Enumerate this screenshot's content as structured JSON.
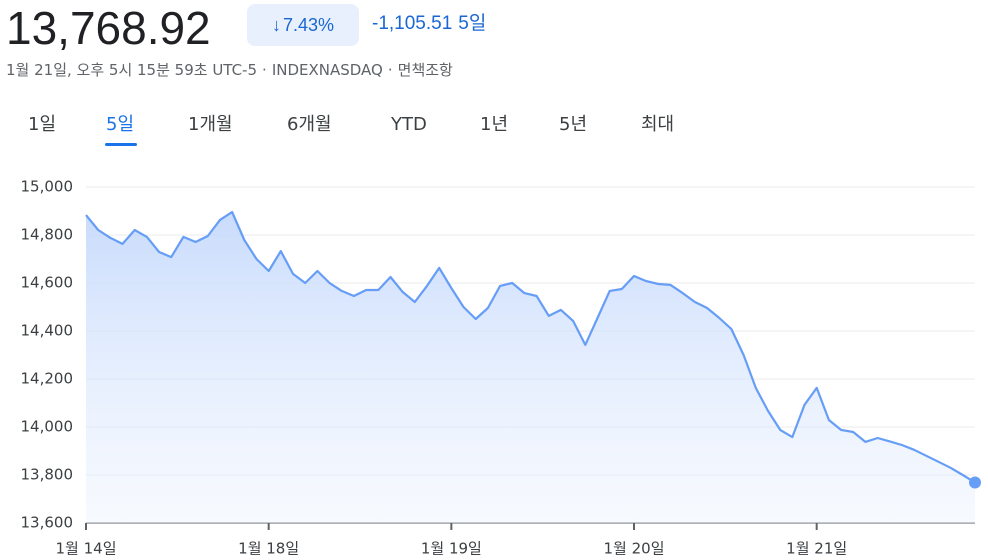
{
  "header": {
    "price": "13,768.92",
    "change_percent": "7.43%",
    "change": "-1,105.51",
    "change_period": "5일",
    "timestamp": "1월 21일, 오후 5시 15분 59초 UTC-5",
    "exchange": "INDEXNASDAQ",
    "disclaimer": "면책조항"
  },
  "tabs": {
    "items": [
      "1일",
      "5일",
      "1개월",
      "6개월",
      "YTD",
      "1년",
      "5년",
      "최대"
    ],
    "selected": 1
  },
  "chart_data": {
    "type": "line",
    "categories": [
      "1월 14일",
      null,
      null,
      null,
      null,
      null,
      null,
      null,
      null,
      null,
      null,
      null,
      null,
      null,
      null,
      "1월 18일",
      null,
      null,
      null,
      null,
      null,
      null,
      null,
      null,
      null,
      null,
      null,
      null,
      null,
      null,
      "1월 19일",
      null,
      null,
      null,
      null,
      null,
      null,
      null,
      null,
      null,
      null,
      null,
      null,
      null,
      null,
      "1월 20일",
      null,
      null,
      null,
      null,
      null,
      null,
      null,
      null,
      null,
      null,
      null,
      null,
      null,
      null,
      "1월 21일",
      null,
      null,
      null,
      null,
      null,
      null,
      null,
      null,
      null,
      null,
      null,
      null,
      null
    ],
    "values": [
      14883,
      14821,
      14788,
      14763,
      14821,
      14792,
      14729,
      14708,
      14792,
      14771,
      14796,
      14863,
      14896,
      14779,
      14700,
      14650,
      14733,
      14638,
      14600,
      14650,
      14600,
      14567,
      14546,
      14571,
      14571,
      14625,
      14563,
      14521,
      14588,
      14663,
      14579,
      14500,
      14450,
      14496,
      14588,
      14600,
      14558,
      14546,
      14463,
      14488,
      14442,
      14342,
      14454,
      14567,
      14575,
      14629,
      14608,
      14596,
      14592,
      14558,
      14521,
      14496,
      14454,
      14408,
      14300,
      14163,
      14067,
      13988,
      13958,
      14092,
      14163,
      14029,
      13988,
      13979,
      13938,
      13954,
      13940,
      13925,
      13905,
      13880,
      13855,
      13830,
      13800,
      13768.92
    ],
    "color": "#669df6",
    "ylim": [
      13600,
      15000
    ],
    "yticks": [
      {
        "value": 13600,
        "label": "13,600"
      },
      {
        "value": 13800,
        "label": "13,800"
      },
      {
        "value": 14000,
        "label": "14,000"
      },
      {
        "value": 14200,
        "label": "14,200"
      },
      {
        "value": 14400,
        "label": "14,400"
      },
      {
        "value": 14600,
        "label": "14,600"
      },
      {
        "value": 14800,
        "label": "14,800"
      },
      {
        "value": 15000,
        "label": "15,000"
      }
    ],
    "grid": true
  }
}
